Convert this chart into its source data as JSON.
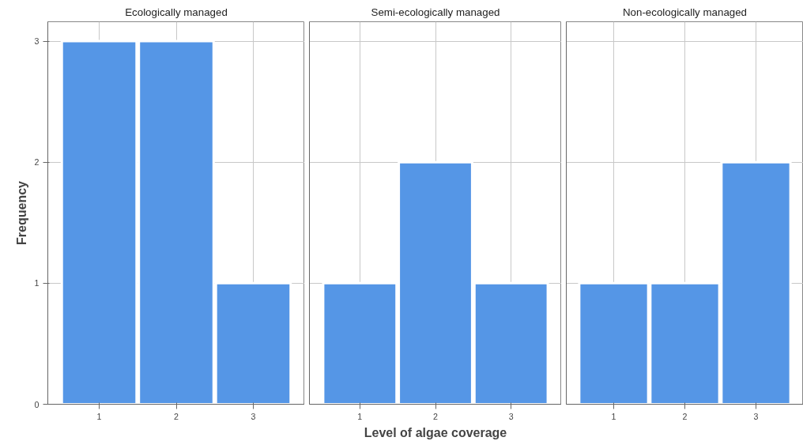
{
  "chart_data": [
    {
      "type": "bar",
      "title": "Ecologically managed",
      "ylabel": "Frequency",
      "categories": [
        "1",
        "2",
        "3"
      ],
      "values": [
        3,
        3,
        1
      ],
      "color": "#5596e6",
      "ylim": [
        0,
        3.16
      ],
      "yticks": [
        0,
        1,
        2,
        3
      ],
      "grid": true
    },
    {
      "type": "bar",
      "title": "Semi-ecologically managed",
      "xlabel": "Level of algae coverage",
      "categories": [
        "1",
        "2",
        "3"
      ],
      "values": [
        1,
        2,
        1
      ],
      "color": "#5596e6",
      "ylim": [
        0,
        3.16
      ],
      "yticks": [
        0,
        1,
        2,
        3
      ],
      "grid": true,
      "tick_labels": "x"
    },
    {
      "type": "bar",
      "title": "Non-ecologically managed",
      "categories": [
        "1",
        "2",
        "3"
      ],
      "values": [
        1,
        1,
        2
      ],
      "color": "#5596e6",
      "ylim": [
        0,
        3.16
      ],
      "yticks": [
        0,
        1,
        2,
        3
      ],
      "grid": true,
      "tick_labels": "x"
    }
  ]
}
